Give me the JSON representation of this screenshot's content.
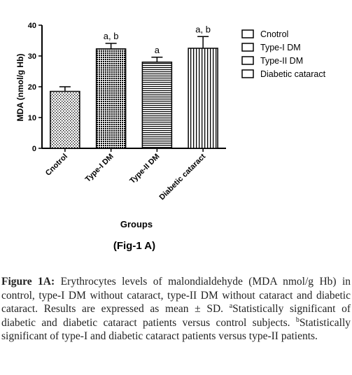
{
  "chart_data": {
    "type": "bar",
    "figure_label": "(Fig-1 A)",
    "xlabel": "Groups",
    "ylabel": "MDA (nmol/g Hb)",
    "ylim": [
      0,
      40
    ],
    "yticks": [
      "0",
      "10",
      "20",
      "30",
      "40"
    ],
    "categories": [
      "Cnotrol",
      "Type-I DM",
      "Type-II DM",
      "Diabetic cataract"
    ],
    "values": [
      18.5,
      32.3,
      28.0,
      32.5
    ],
    "errors": [
      1.5,
      1.8,
      1.6,
      3.8
    ],
    "annotations": [
      "",
      "a, b",
      "a",
      "a, b"
    ],
    "legend": [
      "Cnotrol",
      "Type-I DM",
      "Type-II DM",
      "Diabetic cataract"
    ],
    "legend_position": "right",
    "grid": false
  },
  "caption": {
    "label": "Figure 1A:",
    "text": "Erythrocytes levels of malondialdehyde (MDA nmol/g Hb) in control, type-I DM without cataract, type-II DM without cataract and diabetic cataract. Results are expressed as mean ± SD.",
    "sup_a": "a",
    "note_a": "Statistically significant of diabetic and diabetic cataract patients versus control subjects.",
    "sup_b": "b",
    "note_b": "Statistically significant of type-I and diabetic cataract patients versus type-II patients."
  }
}
